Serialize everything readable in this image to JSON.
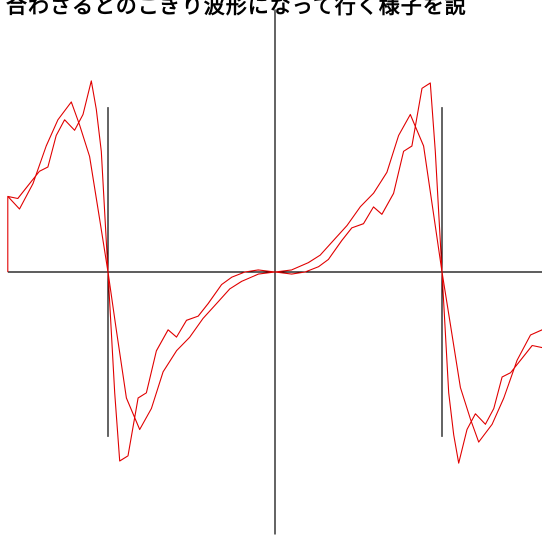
{
  "header": {
    "text": "合わさるとのこぎり波形になって行く様子を説"
  },
  "colors": {
    "axis": "#000000",
    "curve": "#e00000",
    "background": "#ffffff"
  },
  "chart_data": {
    "type": "line",
    "title": "",
    "xlabel": "",
    "ylabel": "",
    "grid": false,
    "xlim": [
      -8.0,
      8.1
    ],
    "ylim": [
      -2.5,
      2.5
    ],
    "axis_markers": [
      -5.0,
      5.0
    ],
    "axis_marker_range": [
      -1.57,
      1.57
    ],
    "series": [
      {
        "values": [
          [
            -8.0,
            0.72
          ],
          [
            -7.65,
            0.6
          ],
          [
            -7.25,
            0.84
          ],
          [
            -6.85,
            1.2
          ],
          [
            -6.5,
            1.45
          ],
          [
            -6.1,
            1.62
          ],
          [
            -5.85,
            1.4
          ],
          [
            -5.55,
            1.1
          ],
          [
            -5.25,
            0.5
          ],
          [
            -5.0,
            0.0
          ],
          [
            -4.75,
            -0.55
          ],
          [
            -4.45,
            -1.2
          ],
          [
            -4.05,
            -1.5
          ],
          [
            -3.7,
            -1.3
          ],
          [
            -3.35,
            -0.95
          ],
          [
            -2.95,
            -0.75
          ],
          [
            -2.55,
            -0.62
          ],
          [
            -2.15,
            -0.44
          ],
          [
            -1.75,
            -0.3
          ],
          [
            -1.35,
            -0.16
          ],
          [
            -1.0,
            -0.09
          ],
          [
            -0.5,
            -0.02
          ],
          [
            0.0,
            0.0
          ],
          [
            0.5,
            0.02
          ],
          [
            1.0,
            0.09
          ],
          [
            1.35,
            0.16
          ],
          [
            1.75,
            0.3
          ],
          [
            2.15,
            0.44
          ],
          [
            2.55,
            0.62
          ],
          [
            2.95,
            0.75
          ],
          [
            3.35,
            0.95
          ],
          [
            3.7,
            1.3
          ],
          [
            4.05,
            1.5
          ],
          [
            4.45,
            1.2
          ],
          [
            4.75,
            0.55
          ],
          [
            5.0,
            0.0
          ],
          [
            5.25,
            -0.5
          ],
          [
            5.55,
            -1.1
          ],
          [
            5.85,
            -1.4
          ],
          [
            6.1,
            -1.62
          ],
          [
            6.5,
            -1.45
          ],
          [
            6.85,
            -1.2
          ],
          [
            7.25,
            -0.84
          ],
          [
            7.65,
            -0.6
          ],
          [
            8.0,
            -0.55
          ]
        ]
      },
      {
        "values": [
          [
            -8.0,
            0.0
          ],
          [
            -8.0,
            0.72
          ],
          [
            -7.7,
            0.7
          ],
          [
            -7.4,
            0.82
          ],
          [
            -7.05,
            0.96
          ],
          [
            -6.8,
            1.0
          ],
          [
            -6.55,
            1.3
          ],
          [
            -6.3,
            1.45
          ],
          [
            -6.0,
            1.35
          ],
          [
            -5.75,
            1.5
          ],
          [
            -5.5,
            1.82
          ],
          [
            -5.35,
            1.55
          ],
          [
            -5.2,
            1.15
          ],
          [
            -5.0,
            0.0
          ],
          [
            -4.8,
            -1.15
          ],
          [
            -4.65,
            -1.8
          ],
          [
            -4.4,
            -1.75
          ],
          [
            -4.1,
            -1.2
          ],
          [
            -3.85,
            -1.15
          ],
          [
            -3.55,
            -0.75
          ],
          [
            -3.2,
            -0.55
          ],
          [
            -2.95,
            -0.62
          ],
          [
            -2.65,
            -0.46
          ],
          [
            -2.3,
            -0.42
          ],
          [
            -2.0,
            -0.3
          ],
          [
            -1.6,
            -0.12
          ],
          [
            -1.3,
            -0.05
          ],
          [
            -0.9,
            0.0
          ],
          [
            -0.5,
            0.02
          ],
          [
            0.0,
            0.0
          ],
          [
            0.5,
            -0.02
          ],
          [
            0.9,
            0.0
          ],
          [
            1.3,
            0.05
          ],
          [
            1.6,
            0.12
          ],
          [
            2.0,
            0.3
          ],
          [
            2.3,
            0.42
          ],
          [
            2.65,
            0.46
          ],
          [
            2.95,
            0.62
          ],
          [
            3.2,
            0.55
          ],
          [
            3.55,
            0.75
          ],
          [
            3.85,
            1.15
          ],
          [
            4.1,
            1.2
          ],
          [
            4.4,
            1.75
          ],
          [
            4.65,
            1.8
          ],
          [
            4.8,
            1.15
          ],
          [
            5.0,
            0.0
          ],
          [
            5.2,
            -1.15
          ],
          [
            5.35,
            -1.55
          ],
          [
            5.5,
            -1.82
          ],
          [
            5.75,
            -1.5
          ],
          [
            6.0,
            -1.35
          ],
          [
            6.3,
            -1.45
          ],
          [
            6.55,
            -1.3
          ],
          [
            6.8,
            -1.0
          ],
          [
            7.05,
            -0.96
          ],
          [
            7.4,
            -0.82
          ],
          [
            7.7,
            -0.7
          ],
          [
            8.0,
            -0.72
          ],
          [
            8.1,
            -0.65
          ]
        ]
      }
    ]
  }
}
